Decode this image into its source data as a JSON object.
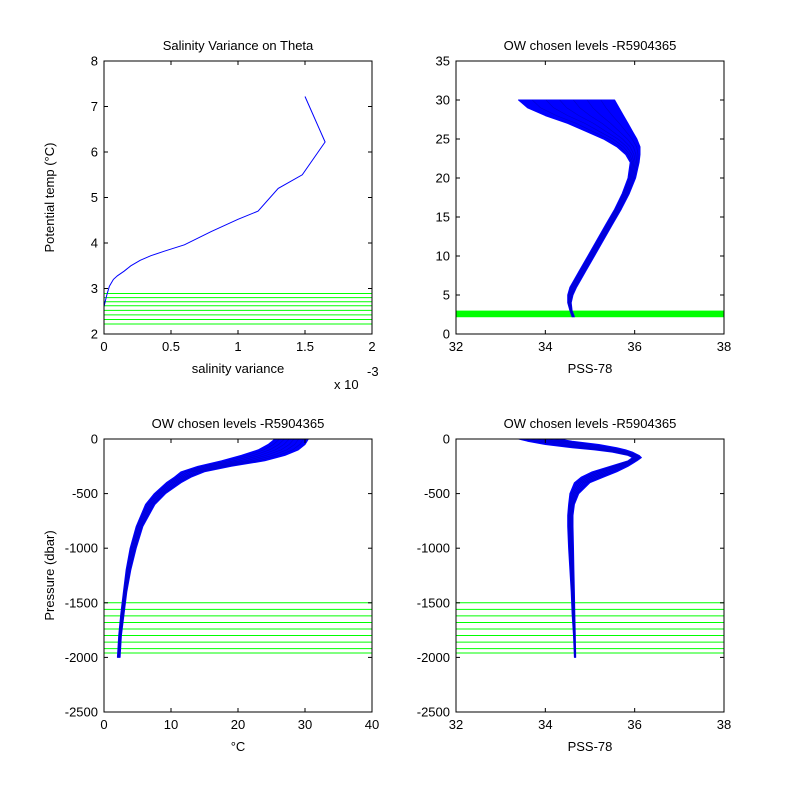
{
  "figure": {
    "background": "#ffffff",
    "axis_color": "#000000",
    "profile_color": "#0000ff",
    "level_color": "#00ff00"
  },
  "chart_data": [
    {
      "id": "sal-var-theta",
      "type": "line",
      "title": "Salinity Variance on Theta",
      "xlabel": "salinity variance",
      "ylabel": "Potential temp (°C)",
      "x_multiplier": "x 10",
      "x_multiplier_exp": "-3",
      "xlim": [
        0,
        2
      ],
      "ylim": [
        2,
        8
      ],
      "xticks": [
        0,
        0.5,
        1,
        1.5,
        2
      ],
      "xtick_labels": [
        "0",
        "0.5",
        "1",
        "1.5",
        "2"
      ],
      "yticks": [
        2,
        3,
        4,
        5,
        6,
        7,
        8
      ],
      "ytick_labels": [
        "2",
        "3",
        "4",
        "5",
        "6",
        "7",
        "8"
      ],
      "grid": false,
      "series": [
        {
          "x": [
            0.0,
            0.02,
            0.04,
            0.07,
            0.1,
            0.15,
            0.2,
            0.27,
            0.35,
            0.45,
            0.6,
            0.8,
            1.0,
            1.15,
            1.3,
            1.48,
            1.65,
            1.5
          ],
          "y": [
            2.6,
            2.85,
            3.05,
            3.2,
            3.28,
            3.38,
            3.5,
            3.62,
            3.72,
            3.82,
            3.96,
            4.25,
            4.52,
            4.7,
            5.2,
            5.5,
            6.22,
            7.22
          ],
          "color": "#0000ff"
        }
      ],
      "hlines": {
        "values": [
          2.22,
          2.32,
          2.42,
          2.52,
          2.62,
          2.71,
          2.8,
          2.89
        ],
        "color": "#00ff00"
      }
    },
    {
      "id": "theta-sal-top",
      "type": "line",
      "title": "OW chosen levels -R5904365",
      "xlabel": "PSS-78",
      "ylabel": "",
      "xlim": [
        32,
        38
      ],
      "ylim": [
        0,
        35
      ],
      "xticks": [
        32,
        34,
        36,
        38
      ],
      "xtick_labels": [
        "32",
        "34",
        "36",
        "38"
      ],
      "yticks": [
        0,
        5,
        10,
        15,
        20,
        25,
        30,
        35
      ],
      "ytick_labels": [
        "0",
        "5",
        "10",
        "15",
        "20",
        "25",
        "30",
        "35"
      ],
      "grid": false,
      "profile_band": {
        "y": [
          2.2,
          3.0,
          4.0,
          5.0,
          6.0,
          7.0,
          8.0,
          10.0,
          12.0,
          14.0,
          16.0,
          18.0,
          20.0,
          22.0,
          23.0,
          24.0,
          25.0,
          26.0,
          27.0,
          28.0,
          29.0,
          30.0
        ],
        "x_left": [
          34.6,
          34.55,
          34.5,
          34.5,
          34.55,
          34.65,
          34.75,
          34.95,
          35.15,
          35.35,
          35.55,
          35.72,
          35.85,
          35.9,
          35.8,
          35.6,
          35.3,
          34.9,
          34.5,
          34.0,
          33.6,
          33.4
        ],
        "x_right": [
          34.65,
          34.6,
          34.58,
          34.62,
          34.7,
          34.8,
          34.9,
          35.1,
          35.3,
          35.5,
          35.7,
          35.88,
          36.02,
          36.1,
          36.12,
          36.12,
          36.05,
          35.95,
          35.85,
          35.75,
          35.65,
          35.55
        ],
        "color": "#0000ff"
      },
      "hband": {
        "from": 2.15,
        "to": 3.0,
        "color": "#00ff00"
      }
    },
    {
      "id": "pres-temp",
      "type": "line",
      "title": "OW chosen levels -R5904365",
      "xlabel": "°C",
      "ylabel": "Pressure (dbar)",
      "xlim": [
        0,
        40
      ],
      "ylim": [
        -2500,
        0
      ],
      "xticks": [
        0,
        10,
        20,
        30,
        40
      ],
      "xtick_labels": [
        "0",
        "10",
        "20",
        "30",
        "40"
      ],
      "yticks": [
        -2500,
        -2000,
        -1500,
        -1000,
        -500,
        0
      ],
      "ytick_labels": [
        "-2500",
        "-2000",
        "-1500",
        "-1000",
        "-500",
        "0"
      ],
      "grid": false,
      "profile_band": {
        "y": [
          -2000,
          -1800,
          -1600,
          -1400,
          -1200,
          -1000,
          -800,
          -600,
          -500,
          -400,
          -350,
          -300,
          -250,
          -200,
          -150,
          -100,
          -50,
          0
        ],
        "x_left": [
          2.0,
          2.2,
          2.5,
          2.9,
          3.3,
          3.9,
          4.8,
          6.2,
          7.5,
          9.3,
          10.5,
          11.5,
          14.0,
          17.5,
          20.5,
          23.0,
          24.5,
          25.5
        ],
        "x_right": [
          2.4,
          2.6,
          3.0,
          3.4,
          4.0,
          4.8,
          5.8,
          7.6,
          9.2,
          11.5,
          13.0,
          15.0,
          19.0,
          24.0,
          27.0,
          29.0,
          30.0,
          30.5
        ],
        "color": "#0000ff"
      },
      "hlines": {
        "values": [
          -1500,
          -1560,
          -1620,
          -1680,
          -1740,
          -1800,
          -1860,
          -1920,
          -1960
        ],
        "color": "#00ff00"
      }
    },
    {
      "id": "pres-sal",
      "type": "line",
      "title": "OW chosen levels -R5904365",
      "xlabel": "PSS-78",
      "ylabel": "",
      "xlim": [
        32,
        38
      ],
      "ylim": [
        -2500,
        0
      ],
      "xticks": [
        32,
        34,
        36,
        38
      ],
      "xtick_labels": [
        "32",
        "34",
        "36",
        "38"
      ],
      "yticks": [
        -2500,
        -2000,
        -1500,
        -1000,
        -500,
        0
      ],
      "ytick_labels": [
        "-2500",
        "-2000",
        "-1500",
        "-1000",
        "-500",
        "0"
      ],
      "grid": false,
      "profile_band": {
        "y": [
          -2000,
          -1800,
          -1600,
          -1400,
          -1200,
          -1000,
          -800,
          -700,
          -600,
          -500,
          -400,
          -350,
          -300,
          -250,
          -200,
          -170,
          -150,
          -120,
          -100,
          -80,
          -50,
          -20,
          0
        ],
        "x_left": [
          34.65,
          34.63,
          34.6,
          34.58,
          34.55,
          34.52,
          34.5,
          34.5,
          34.52,
          34.55,
          34.65,
          34.8,
          35.05,
          35.45,
          35.85,
          35.95,
          35.85,
          35.5,
          35.1,
          34.6,
          34.0,
          33.6,
          33.4
        ],
        "x_right": [
          34.68,
          34.67,
          34.66,
          34.65,
          34.64,
          34.63,
          34.62,
          34.62,
          34.65,
          34.75,
          35.0,
          35.3,
          35.6,
          35.85,
          36.05,
          36.15,
          36.1,
          35.95,
          35.8,
          35.6,
          35.2,
          34.6,
          34.3
        ],
        "color": "#0000ff"
      },
      "hlines": {
        "values": [
          -1500,
          -1560,
          -1620,
          -1680,
          -1740,
          -1800,
          -1860,
          -1920,
          -1960
        ],
        "color": "#00ff00"
      }
    }
  ]
}
